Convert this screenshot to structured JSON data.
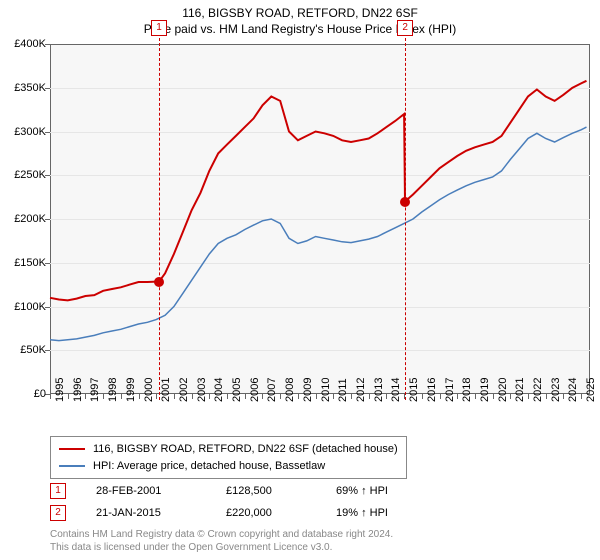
{
  "title": "116, BIGSBY ROAD, RETFORD, DN22 6SF",
  "subtitle": "Price paid vs. HM Land Registry's House Price Index (HPI)",
  "chart": {
    "type": "line",
    "background_color": "#f7f7f7",
    "grid_color": "#e6e6e6",
    "border_color": "#666666",
    "x_start_year": 1995,
    "x_end_year": 2025.5,
    "ylim": [
      0,
      400000
    ],
    "ytick_step": 50000,
    "ytick_labels": [
      "£0",
      "£50K",
      "£100K",
      "£150K",
      "£200K",
      "£250K",
      "£300K",
      "£350K",
      "£400K"
    ],
    "xtick_years": [
      1995,
      1996,
      1997,
      1998,
      1999,
      2000,
      2001,
      2002,
      2003,
      2004,
      2005,
      2006,
      2007,
      2008,
      2009,
      2010,
      2011,
      2012,
      2013,
      2014,
      2015,
      2016,
      2017,
      2018,
      2019,
      2020,
      2021,
      2022,
      2023,
      2024,
      2025
    ],
    "series": [
      {
        "name": "property",
        "label": "116, BIGSBY ROAD, RETFORD, DN22 6SF (detached house)",
        "color": "#cc0000",
        "line_width": 2,
        "points": [
          [
            1995.0,
            110000
          ],
          [
            1995.5,
            108000
          ],
          [
            1996.0,
            107000
          ],
          [
            1996.5,
            109000
          ],
          [
            1997.0,
            112000
          ],
          [
            1997.5,
            113000
          ],
          [
            1998.0,
            118000
          ],
          [
            1998.5,
            120000
          ],
          [
            1999.0,
            122000
          ],
          [
            1999.5,
            125000
          ],
          [
            2000.0,
            128000
          ],
          [
            2000.5,
            128000
          ],
          [
            2001.0,
            128500
          ],
          [
            2001.16,
            128500
          ],
          [
            2001.5,
            138000
          ],
          [
            2002.0,
            160000
          ],
          [
            2002.5,
            185000
          ],
          [
            2003.0,
            210000
          ],
          [
            2003.5,
            230000
          ],
          [
            2004.0,
            255000
          ],
          [
            2004.5,
            275000
          ],
          [
            2005.0,
            285000
          ],
          [
            2005.5,
            295000
          ],
          [
            2006.0,
            305000
          ],
          [
            2006.5,
            315000
          ],
          [
            2007.0,
            330000
          ],
          [
            2007.5,
            340000
          ],
          [
            2008.0,
            335000
          ],
          [
            2008.5,
            300000
          ],
          [
            2009.0,
            290000
          ],
          [
            2009.5,
            295000
          ],
          [
            2010.0,
            300000
          ],
          [
            2010.5,
            298000
          ],
          [
            2011.0,
            295000
          ],
          [
            2011.5,
            290000
          ],
          [
            2012.0,
            288000
          ],
          [
            2012.5,
            290000
          ],
          [
            2013.0,
            292000
          ],
          [
            2013.5,
            298000
          ],
          [
            2014.0,
            305000
          ],
          [
            2014.5,
            312000
          ],
          [
            2015.0,
            320000
          ],
          [
            2015.05,
            220000
          ],
          [
            2015.5,
            228000
          ],
          [
            2016.0,
            238000
          ],
          [
            2016.5,
            248000
          ],
          [
            2017.0,
            258000
          ],
          [
            2017.5,
            265000
          ],
          [
            2018.0,
            272000
          ],
          [
            2018.5,
            278000
          ],
          [
            2019.0,
            282000
          ],
          [
            2019.5,
            285000
          ],
          [
            2020.0,
            288000
          ],
          [
            2020.5,
            295000
          ],
          [
            2021.0,
            310000
          ],
          [
            2021.5,
            325000
          ],
          [
            2022.0,
            340000
          ],
          [
            2022.5,
            348000
          ],
          [
            2023.0,
            340000
          ],
          [
            2023.5,
            335000
          ],
          [
            2024.0,
            342000
          ],
          [
            2024.5,
            350000
          ],
          [
            2025.0,
            355000
          ],
          [
            2025.3,
            358000
          ]
        ]
      },
      {
        "name": "hpi",
        "label": "HPI: Average price, detached house, Bassetlaw",
        "color": "#4a7ebb",
        "line_width": 1.5,
        "points": [
          [
            1995.0,
            62000
          ],
          [
            1995.5,
            61000
          ],
          [
            1996.0,
            62000
          ],
          [
            1996.5,
            63000
          ],
          [
            1997.0,
            65000
          ],
          [
            1997.5,
            67000
          ],
          [
            1998.0,
            70000
          ],
          [
            1998.5,
            72000
          ],
          [
            1999.0,
            74000
          ],
          [
            1999.5,
            77000
          ],
          [
            2000.0,
            80000
          ],
          [
            2000.5,
            82000
          ],
          [
            2001.0,
            85000
          ],
          [
            2001.5,
            90000
          ],
          [
            2002.0,
            100000
          ],
          [
            2002.5,
            115000
          ],
          [
            2003.0,
            130000
          ],
          [
            2003.5,
            145000
          ],
          [
            2004.0,
            160000
          ],
          [
            2004.5,
            172000
          ],
          [
            2005.0,
            178000
          ],
          [
            2005.5,
            182000
          ],
          [
            2006.0,
            188000
          ],
          [
            2006.5,
            193000
          ],
          [
            2007.0,
            198000
          ],
          [
            2007.5,
            200000
          ],
          [
            2008.0,
            195000
          ],
          [
            2008.5,
            178000
          ],
          [
            2009.0,
            172000
          ],
          [
            2009.5,
            175000
          ],
          [
            2010.0,
            180000
          ],
          [
            2010.5,
            178000
          ],
          [
            2011.0,
            176000
          ],
          [
            2011.5,
            174000
          ],
          [
            2012.0,
            173000
          ],
          [
            2012.5,
            175000
          ],
          [
            2013.0,
            177000
          ],
          [
            2013.5,
            180000
          ],
          [
            2014.0,
            185000
          ],
          [
            2014.5,
            190000
          ],
          [
            2015.0,
            195000
          ],
          [
            2015.5,
            200000
          ],
          [
            2016.0,
            208000
          ],
          [
            2016.5,
            215000
          ],
          [
            2017.0,
            222000
          ],
          [
            2017.5,
            228000
          ],
          [
            2018.0,
            233000
          ],
          [
            2018.5,
            238000
          ],
          [
            2019.0,
            242000
          ],
          [
            2019.5,
            245000
          ],
          [
            2020.0,
            248000
          ],
          [
            2020.5,
            255000
          ],
          [
            2021.0,
            268000
          ],
          [
            2021.5,
            280000
          ],
          [
            2022.0,
            292000
          ],
          [
            2022.5,
            298000
          ],
          [
            2023.0,
            292000
          ],
          [
            2023.5,
            288000
          ],
          [
            2024.0,
            293000
          ],
          [
            2024.5,
            298000
          ],
          [
            2025.0,
            302000
          ],
          [
            2025.3,
            305000
          ]
        ]
      }
    ],
    "sales": [
      {
        "n": "1",
        "year": 2001.16,
        "value": 128500,
        "date": "28-FEB-2001",
        "price": "£128,500",
        "pct": "69% ↑ HPI"
      },
      {
        "n": "2",
        "year": 2015.06,
        "value": 220000,
        "date": "21-JAN-2015",
        "price": "£220,000",
        "pct": "19% ↑ HPI"
      }
    ]
  },
  "footer": {
    "line1": "Contains HM Land Registry data © Crown copyright and database right 2024.",
    "line2": "This data is licensed under the Open Government Licence v3.0."
  }
}
